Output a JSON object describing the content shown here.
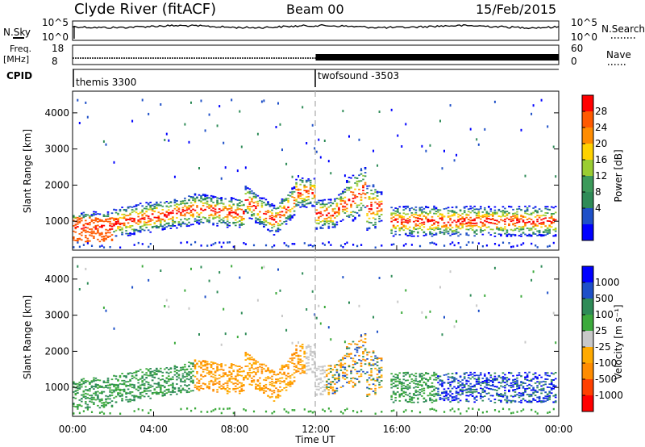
{
  "header": {
    "station": "Clyde River (fitACF)",
    "beam": "Beam 00",
    "date": "15/Feb/2015"
  },
  "strips": {
    "nsky_label": "N.Sky",
    "nsearch_label": "N.Search",
    "nsky_ticks": [
      "10^5",
      "10^0"
    ],
    "nsearch_ticks": [
      "10^5",
      "10^0"
    ],
    "freq_label_top": "Freq.",
    "freq_label_unit": "[MHz]",
    "freq_ticks": [
      "18",
      "8"
    ],
    "nave_label": "Nave",
    "nave_ticks": [
      "60",
      "0"
    ],
    "cpid_label": "CPID",
    "cpid_segments": [
      {
        "label": "themis 3300",
        "start_hour": 0
      },
      {
        "label": "twofsound -3503",
        "start_hour": 12
      }
    ]
  },
  "chart_data": [
    {
      "type": "heatmap",
      "name": "power",
      "ylabel": "Slant Range [km]",
      "yticks": [
        1000,
        2000,
        3000,
        4000
      ],
      "ylim": [
        200,
        4600
      ],
      "xlim": [
        0,
        24
      ],
      "colorbar_label": "Power [dB]",
      "colorbar_ticks": [
        "28",
        "24",
        "20",
        "16",
        "12",
        "8",
        "4"
      ],
      "colors_top_to_bottom": [
        "#ff0000",
        "#ff5a00",
        "#ff8c00",
        "#ffd200",
        "#9acd32",
        "#3c9a5a",
        "#2e8b57",
        "#1e50c8",
        "#0000ff"
      ]
    },
    {
      "type": "heatmap",
      "name": "velocity",
      "ylabel": "Slant Range [km]",
      "yticks": [
        1000,
        2000,
        3000,
        4000
      ],
      "ylim": [
        200,
        4600
      ],
      "xlim": [
        0,
        24
      ],
      "xlabel": "Time UT",
      "xticks": [
        "00:00",
        "04:00",
        "08:00",
        "12:00",
        "16:00",
        "20:00",
        "00:00"
      ],
      "colorbar_label": "Velocity [m s⁻¹]",
      "colorbar_ticks": [
        "1000",
        "500",
        "100",
        "25",
        "-25",
        "-100",
        "-500",
        "-1000"
      ],
      "colors_top_to_bottom": [
        "#0000ff",
        "#1e50c8",
        "#2e8b57",
        "#3caa3c",
        "#c8c8c8",
        "#ffaa00",
        "#ff8c00",
        "#ff4000",
        "#ff0000"
      ]
    }
  ],
  "colors": {
    "dashed_line": "#aaaaaa",
    "ground": "#c0c0c0"
  }
}
